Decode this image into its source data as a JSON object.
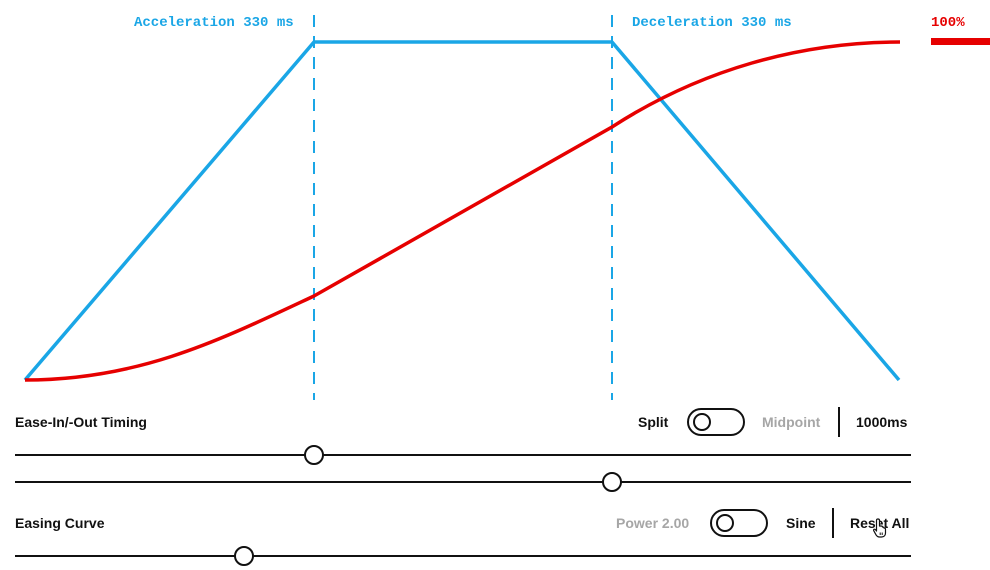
{
  "graph": {
    "acceleration_label": "Acceleration 330 ms",
    "deceleration_label": "Deceleration 330 ms",
    "progress_label": "100%",
    "colors": {
      "velocity": "#1aa6e6",
      "position": "#e60000",
      "markers": "#1aa6e6"
    }
  },
  "timing": {
    "title": "Ease-In/-Out Timing",
    "split_label": "Split",
    "midpoint_label": "Midpoint",
    "duration_label": "1000ms",
    "acceleration_slider_value": 0.33,
    "deceleration_slider_value": 0.67
  },
  "easing": {
    "title": "Easing Curve",
    "power_label": "Power 2.00",
    "sine_label": "Sine",
    "reset_label": "Reset All",
    "slider_value": 0.26
  },
  "icons": {
    "cursor": "hand-pointer-icon"
  }
}
